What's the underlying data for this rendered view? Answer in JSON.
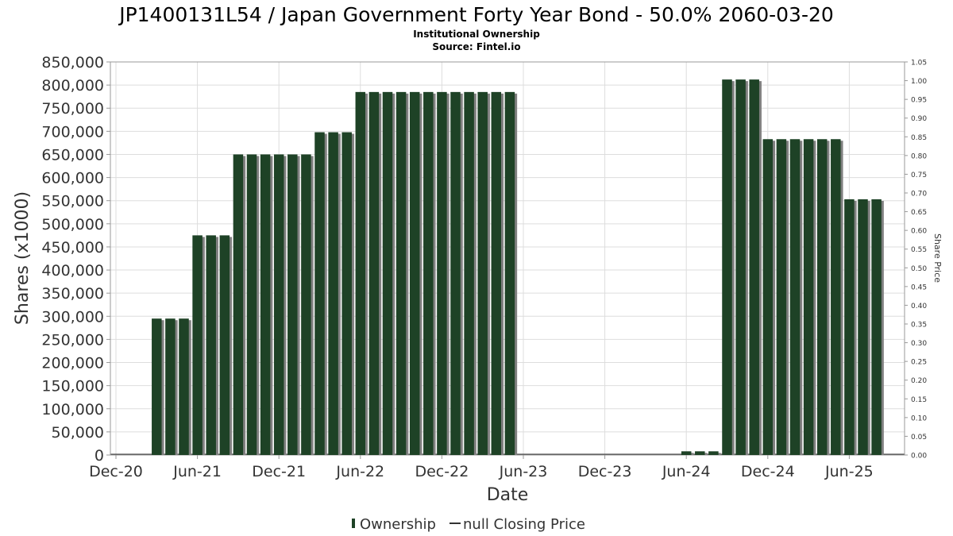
{
  "chart_data": {
    "type": "bar",
    "title": "JP1400131L54 / Japan Government Forty Year Bond - 50.0% 2060-03-20",
    "subtitle": "Institutional Ownership",
    "source": "Source: Fintel.io",
    "xlabel": "Date",
    "ylabel": "Shares (x1000)",
    "y2label": "Share Price",
    "ylim": [
      0,
      850000
    ],
    "y2lim": [
      0,
      1.05
    ],
    "yticks": [
      "0",
      "50,000",
      "100,000",
      "150,000",
      "200,000",
      "250,000",
      "300,000",
      "350,000",
      "400,000",
      "450,000",
      "500,000",
      "550,000",
      "600,000",
      "650,000",
      "700,000",
      "750,000",
      "800,000",
      "850,000"
    ],
    "y2ticks": [
      "0.00",
      "0.05",
      "0.10",
      "0.15",
      "0.20",
      "0.25",
      "0.30",
      "0.35",
      "0.40",
      "0.45",
      "0.50",
      "0.55",
      "0.60",
      "0.65",
      "0.70",
      "0.75",
      "0.80",
      "0.85",
      "0.90",
      "0.95",
      "1.00",
      "1.05"
    ],
    "xticks": [
      "Dec-20",
      "Jun-21",
      "Dec-21",
      "Jun-22",
      "Dec-22",
      "Jun-23",
      "Dec-23",
      "Jun-24",
      "Dec-24",
      "Jun-25"
    ],
    "grid": true,
    "legend_position": "bottom",
    "legend": [
      "Ownership",
      "null Closing Price"
    ],
    "colors": {
      "bar": "#1e4226",
      "bar_shadow": "#808080",
      "grid": "#dddddd",
      "axis": "#999999"
    },
    "series": [
      {
        "name": "Ownership",
        "x": [
          "2021-03",
          "2021-04",
          "2021-05",
          "2021-06",
          "2021-07",
          "2021-08",
          "2021-09",
          "2021-10",
          "2021-11",
          "2021-12",
          "2022-01",
          "2022-02",
          "2022-03",
          "2022-04",
          "2022-05",
          "2022-06",
          "2022-07",
          "2022-08",
          "2022-09",
          "2022-10",
          "2022-11",
          "2022-12",
          "2023-01",
          "2023-02",
          "2023-03",
          "2023-04",
          "2023-05",
          "2024-06",
          "2024-07",
          "2024-08",
          "2024-09",
          "2024-10",
          "2024-11",
          "2024-12",
          "2025-01",
          "2025-02",
          "2025-03",
          "2025-04",
          "2025-05",
          "2025-06",
          "2025-07",
          "2025-08"
        ],
        "values": [
          295000,
          295000,
          295000,
          475000,
          475000,
          475000,
          650000,
          650000,
          650000,
          650000,
          650000,
          650000,
          698000,
          698000,
          698000,
          785000,
          785000,
          785000,
          785000,
          785000,
          785000,
          785000,
          785000,
          785000,
          785000,
          785000,
          785000,
          8000,
          8000,
          8000,
          812000,
          812000,
          812000,
          683000,
          683000,
          683000,
          683000,
          683000,
          683000,
          553000,
          553000,
          553000
        ]
      }
    ]
  }
}
